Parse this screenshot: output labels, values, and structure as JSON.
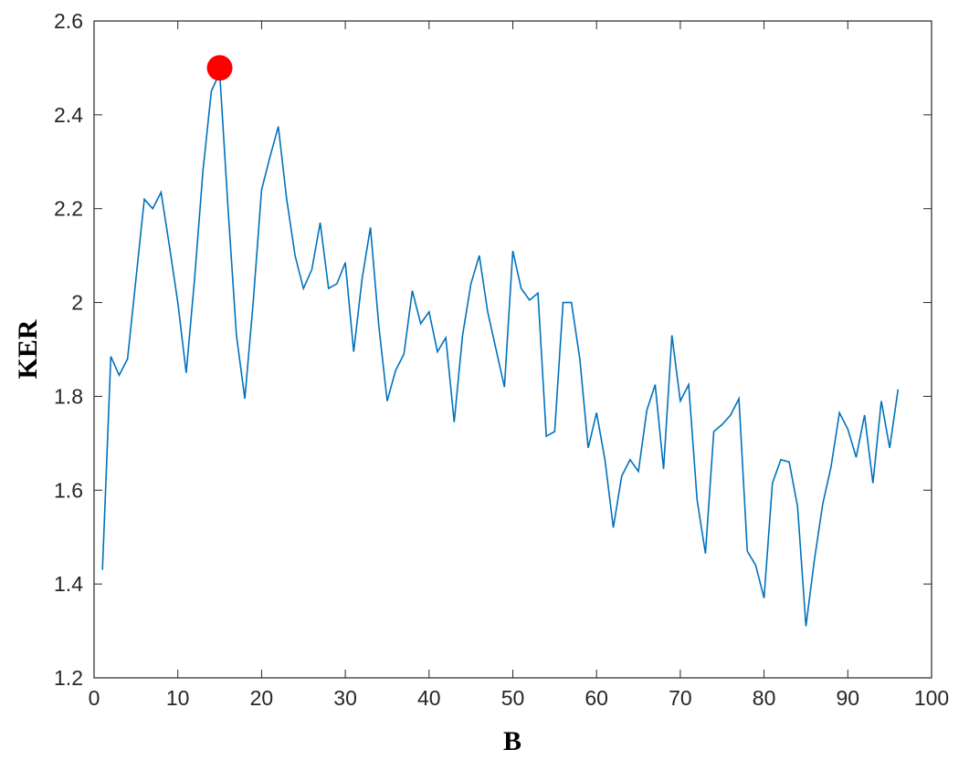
{
  "chart_data": {
    "type": "line",
    "xlabel": "B",
    "ylabel": "KER",
    "x": [
      1,
      2,
      3,
      4,
      5,
      6,
      7,
      8,
      9,
      10,
      11,
      12,
      13,
      14,
      15,
      16,
      17,
      18,
      19,
      20,
      21,
      22,
      23,
      24,
      25,
      26,
      27,
      28,
      29,
      30,
      31,
      32,
      33,
      34,
      35,
      36,
      37,
      38,
      39,
      40,
      41,
      42,
      43,
      44,
      45,
      46,
      47,
      48,
      49,
      50,
      51,
      52,
      53,
      54,
      55,
      56,
      57,
      58,
      59,
      60,
      61,
      62,
      63,
      64,
      65,
      66,
      67,
      68,
      69,
      70,
      71,
      72,
      73,
      74,
      75,
      76,
      77,
      78,
      79,
      80,
      81,
      82,
      83,
      84,
      85,
      86,
      87,
      88,
      89,
      90,
      91,
      92,
      93,
      94,
      95,
      96
    ],
    "series": [
      {
        "color": "#0072bd",
        "values": [
          1.43,
          1.885,
          1.845,
          1.88,
          2.05,
          2.22,
          2.2,
          2.235,
          2.12,
          2.0,
          1.85,
          2.05,
          2.28,
          2.45,
          2.49,
          2.2,
          1.93,
          1.795,
          2.0,
          2.24,
          2.31,
          2.375,
          2.22,
          2.1,
          2.03,
          2.07,
          2.17,
          2.03,
          2.04,
          2.085,
          1.895,
          2.05,
          2.16,
          1.95,
          1.79,
          1.855,
          1.89,
          2.025,
          1.955,
          1.98,
          1.895,
          1.925,
          1.745,
          1.93,
          2.04,
          2.1,
          1.98,
          1.9,
          1.82,
          2.11,
          2.03,
          2.005,
          2.02,
          1.715,
          1.725,
          2.0,
          2.0,
          1.88,
          1.69,
          1.765,
          1.665,
          1.52,
          1.63,
          1.665,
          1.64,
          1.77,
          1.825,
          1.645,
          1.93,
          1.79,
          1.825,
          1.58,
          1.465,
          1.725,
          1.74,
          1.76,
          1.795,
          1.47,
          1.44,
          1.37,
          1.615,
          1.665,
          1.66,
          1.565,
          1.31,
          1.45,
          1.57,
          1.65,
          1.765,
          1.73,
          1.67,
          1.76,
          1.615,
          1.79,
          1.69,
          1.815
        ]
      }
    ],
    "highlight": {
      "x": 15,
      "y": 2.5,
      "color": "#ff0000"
    },
    "xlim": [
      0,
      100
    ],
    "xticks": [
      0,
      10,
      20,
      30,
      40,
      50,
      60,
      70,
      80,
      90,
      100
    ],
    "ylim": [
      1.2,
      2.6
    ],
    "yticks": [
      1.2,
      1.4,
      1.6,
      1.8,
      2,
      2.2,
      2.4,
      2.6
    ]
  }
}
